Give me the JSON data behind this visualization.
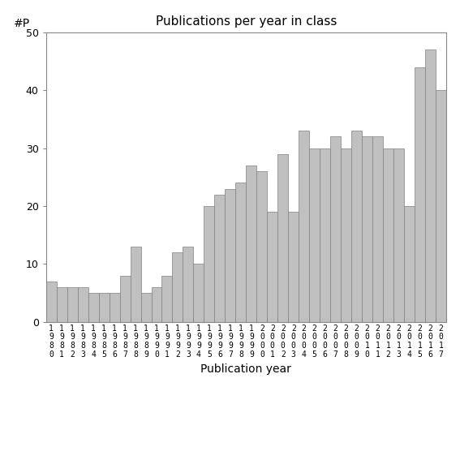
{
  "title": "Publications per year in class",
  "xlabel": "Publication year",
  "ylabel": "#P",
  "bar_color": "#c0c0c0",
  "bar_edgecolor": "#808080",
  "years": [
    1980,
    1981,
    1982,
    1983,
    1984,
    1985,
    1986,
    1987,
    1988,
    1989,
    1990,
    1991,
    1992,
    1993,
    1994,
    1995,
    1996,
    1997,
    1998,
    1999,
    2000,
    2001,
    2002,
    2003,
    2004,
    2005,
    2006,
    2007,
    2008,
    2009,
    2010,
    2011,
    2012,
    2013,
    2014,
    2015,
    2016,
    2017
  ],
  "values": [
    7,
    6,
    6,
    6,
    5,
    5,
    5,
    8,
    13,
    5,
    6,
    8,
    12,
    13,
    10,
    20,
    22,
    23,
    24,
    27,
    26,
    19,
    29,
    19,
    33,
    30,
    30,
    32,
    30,
    33,
    32,
    32,
    30,
    30,
    20,
    44,
    47,
    40
  ],
  "last_partial": 4,
  "ylim": [
    0,
    50
  ],
  "yticks": [
    0,
    10,
    20,
    30,
    40,
    50
  ],
  "background_color": "#ffffff",
  "figsize": [
    5.67,
    5.67
  ],
  "dpi": 100
}
